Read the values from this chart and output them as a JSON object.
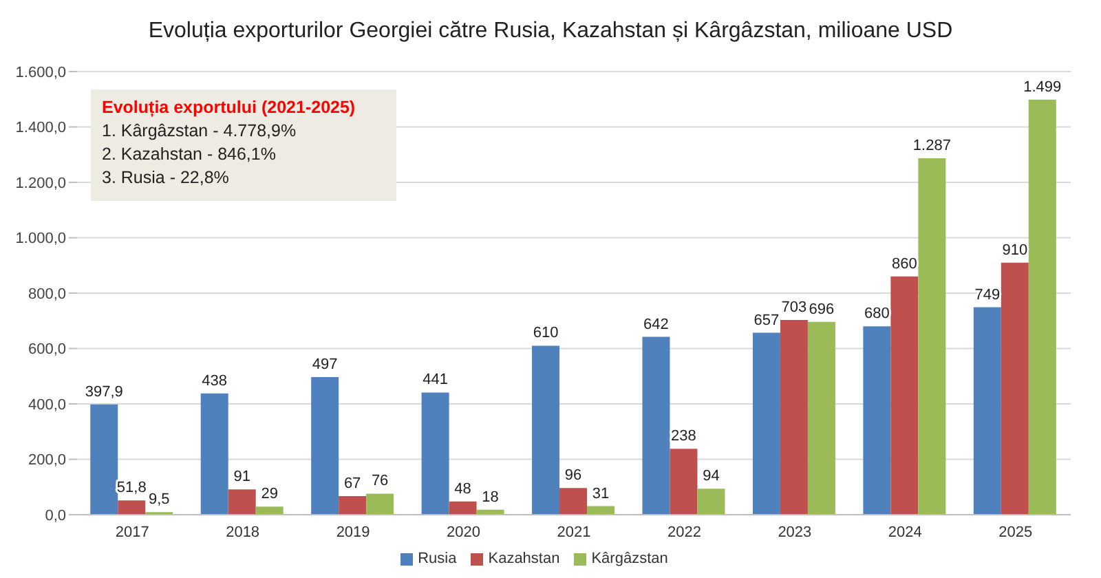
{
  "chart_data": {
    "type": "bar",
    "title": "Evoluția exporturilor Georgiei către Rusia, Kazahstan și Kârgâzstan, milioane USD",
    "categories": [
      "2017",
      "2018",
      "2019",
      "2020",
      "2021",
      "2022",
      "2023",
      "2024",
      "2025"
    ],
    "series": [
      {
        "name": "Rusia",
        "color": "#4f81bd",
        "values": [
          397.9,
          438,
          497,
          441,
          610,
          642,
          657,
          680,
          749
        ],
        "value_labels": [
          "397,9",
          "438",
          "497",
          "441",
          "610",
          "642",
          "657",
          "680",
          "749"
        ]
      },
      {
        "name": "Kazahstan",
        "color": "#c0504d",
        "values": [
          51.8,
          91,
          67,
          48,
          96,
          238,
          703,
          860,
          910
        ],
        "value_labels": [
          "51,8",
          "91",
          "67",
          "48",
          "96",
          "238",
          "703",
          "860",
          "910"
        ]
      },
      {
        "name": "Kârgâzstan",
        "color": "#9bbb59",
        "values": [
          9.5,
          29,
          76,
          18,
          31,
          94,
          696,
          1287,
          1499
        ],
        "value_labels": [
          "9,5",
          "29",
          "76",
          "18",
          "31",
          "94",
          "696",
          "1.287",
          "1.499"
        ]
      }
    ],
    "ylim": [
      0,
      1600
    ],
    "yticks": [
      {
        "value": 0,
        "label": "0,0"
      },
      {
        "value": 200,
        "label": "200,0"
      },
      {
        "value": 400,
        "label": "400,0"
      },
      {
        "value": 600,
        "label": "600,0"
      },
      {
        "value": 800,
        "label": "800,0"
      },
      {
        "value": 1000,
        "label": "1.000,0"
      },
      {
        "value": 1200,
        "label": "1.200,0"
      },
      {
        "value": 1400,
        "label": "1.400,0"
      },
      {
        "value": 1600,
        "label": "1.600,0"
      }
    ],
    "grid": "y",
    "legend": "bottom",
    "annotations": [
      "Evoluția exportului (2021-2025)",
      "1. Kârgâzstan - 4.778,9%",
      "2. Kazahstan - 846,1%",
      "3. Rusia - 22,8%"
    ]
  }
}
